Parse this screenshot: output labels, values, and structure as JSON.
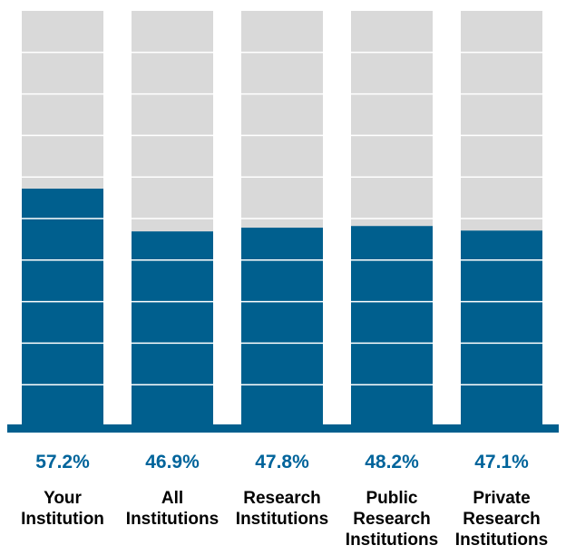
{
  "chart_data": {
    "type": "bar",
    "stacked_to_100": true,
    "categories": [
      [
        "Your",
        "Institution"
      ],
      [
        "All",
        "Institutions"
      ],
      [
        "Research",
        "Institutions"
      ],
      [
        "Public",
        "Research",
        "Institutions"
      ],
      [
        "Private",
        "Research",
        "Institutions"
      ]
    ],
    "values": [
      57.2,
      46.9,
      47.8,
      48.2,
      47.1
    ],
    "value_labels": [
      "57.2%",
      "46.9%",
      "47.8%",
      "48.2%",
      "47.1%"
    ],
    "ylim": [
      0,
      100
    ],
    "gridlines_every": 10,
    "grid": true,
    "legend": "none",
    "colors": {
      "bar": "#005f8e",
      "remainder": "#d9d9d9",
      "gridline": "#ffffff",
      "value_label": "#00649b",
      "baseline": "#005f8e"
    }
  }
}
